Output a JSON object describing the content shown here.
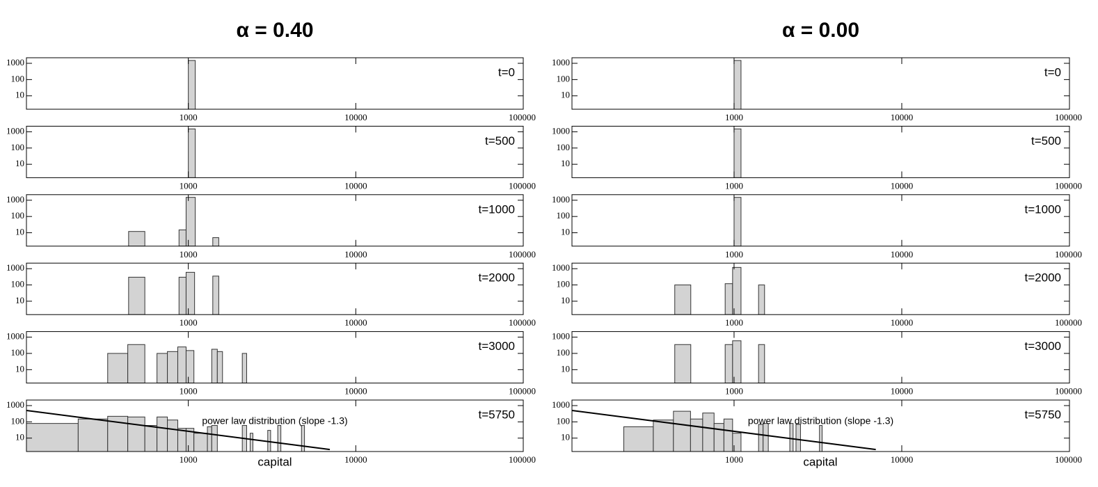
{
  "chart_data": [
    {
      "type": "histogram",
      "title": "α = 0.40",
      "annotation": "t=0",
      "bins": [
        1000,
        1100
      ],
      "counts": [
        1500
      ],
      "color": "#d3d3d3",
      "xscale": "log",
      "yscale": "log",
      "xlim": [
        108,
        100000
      ],
      "ylim": [
        1.5,
        2200
      ],
      "xticks": [
        1000,
        10000,
        100000
      ],
      "yticks": [
        10,
        100,
        1000
      ]
    },
    {
      "type": "histogram",
      "annotation": "t=500",
      "bins": [
        1000,
        1100
      ],
      "counts": [
        1500
      ],
      "color": "#d3d3d3",
      "xscale": "log",
      "yscale": "log",
      "xlim": [
        108,
        100000
      ],
      "ylim": [
        1.5,
        2200
      ],
      "xticks": [
        1000,
        10000,
        100000
      ],
      "yticks": [
        10,
        100,
        1000
      ]
    },
    {
      "type": "histogram",
      "annotation": "t=1000",
      "bins": [
        440,
        550,
        880,
        970,
        1100,
        1400,
        1520
      ],
      "counts": [
        12,
        null,
        15,
        1500,
        null,
        5
      ],
      "color": "#d3d3d3",
      "xscale": "log",
      "yscale": "log",
      "xlim": [
        108,
        100000
      ],
      "ylim": [
        1.5,
        2200
      ],
      "xticks": [
        1000,
        10000,
        100000
      ],
      "yticks": [
        10,
        100,
        1000
      ]
    },
    {
      "type": "histogram",
      "annotation": "t=2000",
      "bins": [
        440,
        550,
        880,
        970,
        1090,
        1400,
        1520
      ],
      "counts": [
        300,
        null,
        300,
        600,
        null,
        350
      ],
      "color": "#d3d3d3",
      "xscale": "log",
      "yscale": "log",
      "xlim": [
        108,
        100000
      ],
      "ylim": [
        1.5,
        2200
      ],
      "xticks": [
        1000,
        10000,
        100000
      ],
      "yticks": [
        10,
        100,
        1000
      ]
    },
    {
      "type": "histogram",
      "annotation": "t=3000",
      "bins": [
        330,
        435,
        550,
        650,
        750,
        865,
        970,
        1080,
        1380,
        1490,
        1600,
        2100,
        2230
      ],
      "counts": [
        100,
        350,
        null,
        100,
        130,
        250,
        150,
        null,
        180,
        130,
        null,
        100
      ],
      "color": "#d3d3d3",
      "xscale": "log",
      "yscale": "log",
      "xlim": [
        108,
        100000
      ],
      "ylim": [
        1.5,
        2200
      ],
      "xticks": [
        1000,
        10000,
        100000
      ],
      "yticks": [
        10,
        100,
        1000
      ]
    },
    {
      "type": "histogram",
      "annotation": "t=5750",
      "xlabel": "capital",
      "bins": [
        108,
        220,
        330,
        435,
        550,
        650,
        750,
        865,
        970,
        1080,
        1300,
        1380,
        1490,
        2100,
        2230,
        2340,
        2430,
        2980,
        3100,
        3420,
        3570,
        4740,
        4940
      ],
      "counts": [
        80,
        150,
        220,
        200,
        60,
        200,
        130,
        40,
        40,
        20,
        50,
        60,
        null,
        60,
        null,
        20,
        null,
        30,
        null,
        60,
        null,
        60
      ],
      "fit": {
        "label": "power law distribution (slope -1.3)",
        "x": [
          108,
          7000
        ],
        "values": [
          500,
          2
        ]
      },
      "color": "#d3d3d3",
      "xscale": "log",
      "yscale": "log",
      "xlim": [
        108,
        100000
      ],
      "ylim": [
        1.5,
        2200
      ],
      "xticks": [
        1000,
        10000,
        100000
      ],
      "yticks": [
        10,
        100,
        1000
      ]
    },
    {
      "type": "histogram",
      "title": "α = 0.00",
      "annotation": "t=0",
      "bins": [
        1000,
        1100
      ],
      "counts": [
        1500
      ],
      "color": "#d3d3d3",
      "xscale": "log",
      "yscale": "log",
      "xlim": [
        108,
        100000
      ],
      "ylim": [
        1.5,
        2200
      ],
      "xticks": [
        1000,
        10000,
        100000
      ],
      "yticks": [
        10,
        100,
        1000
      ]
    },
    {
      "type": "histogram",
      "annotation": "t=500",
      "bins": [
        1000,
        1100
      ],
      "counts": [
        1500
      ],
      "color": "#d3d3d3",
      "xscale": "log",
      "yscale": "log",
      "xlim": [
        108,
        100000
      ],
      "ylim": [
        1.5,
        2200
      ],
      "xticks": [
        1000,
        10000,
        100000
      ],
      "yticks": [
        10,
        100,
        1000
      ]
    },
    {
      "type": "histogram",
      "annotation": "t=1000",
      "bins": [
        1000,
        1100
      ],
      "counts": [
        1500
      ],
      "color": "#d3d3d3",
      "xscale": "log",
      "yscale": "log",
      "xlim": [
        108,
        100000
      ],
      "ylim": [
        1.5,
        2200
      ],
      "xticks": [
        1000,
        10000,
        100000
      ],
      "yticks": [
        10,
        100,
        1000
      ]
    },
    {
      "type": "histogram",
      "annotation": "t=2000",
      "bins": [
        443,
        552,
        885,
        980,
        1100,
        1400,
        1520
      ],
      "counts": [
        100,
        null,
        120,
        1200,
        null,
        100
      ],
      "color": "#d3d3d3",
      "xscale": "log",
      "yscale": "log",
      "xlim": [
        108,
        100000
      ],
      "ylim": [
        1.5,
        2200
      ],
      "xticks": [
        1000,
        10000,
        100000
      ],
      "yticks": [
        10,
        100,
        1000
      ]
    },
    {
      "type": "histogram",
      "annotation": "t=3000",
      "bins": [
        443,
        552,
        885,
        980,
        1100,
        1400,
        1520
      ],
      "counts": [
        350,
        null,
        350,
        600,
        null,
        350
      ],
      "color": "#d3d3d3",
      "xscale": "log",
      "yscale": "log",
      "xlim": [
        108,
        100000
      ],
      "ylim": [
        1.5,
        2200
      ],
      "xticks": [
        1000,
        10000,
        100000
      ],
      "yticks": [
        10,
        100,
        1000
      ]
    },
    {
      "type": "histogram",
      "annotation": "t=5750",
      "xlabel": "capital",
      "bins": [
        220,
        330,
        435,
        550,
        650,
        760,
        870,
        980,
        1100,
        1400,
        1490,
        1600,
        2150,
        2250,
        2340,
        2490,
        3230,
        3350
      ],
      "counts": [
        50,
        130,
        450,
        150,
        350,
        80,
        150,
        20,
        null,
        70,
        80,
        null,
        80,
        null,
        70,
        null,
        60
      ],
      "fit": {
        "label": "power law distribution (slope -1.3)",
        "x": [
          108,
          7000
        ],
        "values": [
          500,
          2
        ]
      },
      "color": "#d3d3d3",
      "xscale": "log",
      "yscale": "log",
      "xlim": [
        108,
        100000
      ],
      "ylim": [
        1.5,
        2200
      ],
      "xticks": [
        1000,
        10000,
        100000
      ],
      "yticks": [
        10,
        100,
        1000
      ]
    }
  ]
}
